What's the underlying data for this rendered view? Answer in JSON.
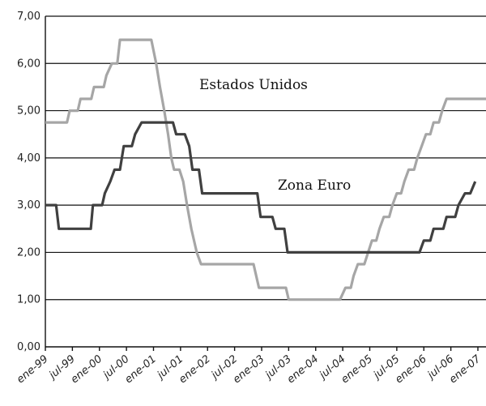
{
  "chart_data": {
    "type": "line",
    "title": "",
    "xlabel": "",
    "ylabel": "",
    "ylim": [
      0,
      7
    ],
    "y_ticks": [
      "0,00",
      "1,00",
      "2,00",
      "3,00",
      "4,00",
      "5,00",
      "6,00",
      "7,00"
    ],
    "x_ticks": [
      "ene-99",
      "jul-99",
      "ene-00",
      "jul-00",
      "ene-01",
      "jul-01",
      "ene-02",
      "jul-02",
      "ene-03",
      "jul-03",
      "ene-04",
      "jul-04",
      "ene-05",
      "jul-05",
      "ene-06",
      "jul-06",
      "ene-07"
    ],
    "grid": "horizontal",
    "series": [
      {
        "name": "Estados Unidos",
        "color": "#a6a6a6",
        "points": [
          [
            1999.0,
            4.75
          ],
          [
            1999.4,
            4.75
          ],
          [
            1999.45,
            5.0
          ],
          [
            1999.6,
            5.0
          ],
          [
            1999.65,
            5.25
          ],
          [
            1999.85,
            5.25
          ],
          [
            1999.9,
            5.5
          ],
          [
            2000.08,
            5.5
          ],
          [
            2000.13,
            5.75
          ],
          [
            2000.23,
            6.0
          ],
          [
            2000.33,
            6.0
          ],
          [
            2000.38,
            6.5
          ],
          [
            2000.96,
            6.5
          ],
          [
            2001.05,
            6.0
          ],
          [
            2001.12,
            5.5
          ],
          [
            2001.2,
            5.0
          ],
          [
            2001.27,
            4.5
          ],
          [
            2001.33,
            4.0
          ],
          [
            2001.38,
            3.75
          ],
          [
            2001.48,
            3.75
          ],
          [
            2001.55,
            3.5
          ],
          [
            2001.62,
            3.0
          ],
          [
            2001.7,
            2.5
          ],
          [
            2001.8,
            2.0
          ],
          [
            2001.88,
            1.75
          ],
          [
            2002.85,
            1.75
          ],
          [
            2002.95,
            1.25
          ],
          [
            2003.45,
            1.25
          ],
          [
            2003.5,
            1.0
          ],
          [
            2004.45,
            1.0
          ],
          [
            2004.55,
            1.25
          ],
          [
            2004.65,
            1.25
          ],
          [
            2004.7,
            1.5
          ],
          [
            2004.78,
            1.75
          ],
          [
            2004.9,
            1.75
          ],
          [
            2004.97,
            2.0
          ],
          [
            2005.04,
            2.25
          ],
          [
            2005.12,
            2.25
          ],
          [
            2005.18,
            2.5
          ],
          [
            2005.26,
            2.75
          ],
          [
            2005.36,
            2.75
          ],
          [
            2005.42,
            3.0
          ],
          [
            2005.5,
            3.25
          ],
          [
            2005.58,
            3.25
          ],
          [
            2005.64,
            3.5
          ],
          [
            2005.72,
            3.75
          ],
          [
            2005.82,
            3.75
          ],
          [
            2005.88,
            4.0
          ],
          [
            2005.96,
            4.25
          ],
          [
            2006.04,
            4.5
          ],
          [
            2006.12,
            4.5
          ],
          [
            2006.18,
            4.75
          ],
          [
            2006.28,
            4.75
          ],
          [
            2006.34,
            5.0
          ],
          [
            2006.42,
            5.25
          ],
          [
            2007.15,
            5.25
          ]
        ]
      },
      {
        "name": "Zona Euro",
        "color": "#404040",
        "points": [
          [
            1999.0,
            3.0
          ],
          [
            1999.2,
            3.0
          ],
          [
            1999.25,
            2.5
          ],
          [
            1999.84,
            2.5
          ],
          [
            1999.88,
            3.0
          ],
          [
            2000.05,
            3.0
          ],
          [
            2000.1,
            3.25
          ],
          [
            2000.2,
            3.5
          ],
          [
            2000.28,
            3.75
          ],
          [
            2000.38,
            3.75
          ],
          [
            2000.45,
            4.25
          ],
          [
            2000.6,
            4.25
          ],
          [
            2000.66,
            4.5
          ],
          [
            2000.78,
            4.75
          ],
          [
            2001.36,
            4.75
          ],
          [
            2001.42,
            4.5
          ],
          [
            2001.58,
            4.5
          ],
          [
            2001.66,
            4.25
          ],
          [
            2001.72,
            3.75
          ],
          [
            2001.84,
            3.75
          ],
          [
            2001.9,
            3.25
          ],
          [
            2002.92,
            3.25
          ],
          [
            2002.98,
            2.75
          ],
          [
            2003.2,
            2.75
          ],
          [
            2003.26,
            2.5
          ],
          [
            2003.42,
            2.5
          ],
          [
            2003.48,
            2.0
          ],
          [
            2005.92,
            2.0
          ],
          [
            2006.0,
            2.25
          ],
          [
            2006.12,
            2.25
          ],
          [
            2006.18,
            2.5
          ],
          [
            2006.36,
            2.5
          ],
          [
            2006.42,
            2.75
          ],
          [
            2006.58,
            2.75
          ],
          [
            2006.64,
            3.0
          ],
          [
            2006.76,
            3.25
          ],
          [
            2006.86,
            3.25
          ],
          [
            2006.95,
            3.5
          ]
        ]
      }
    ]
  }
}
